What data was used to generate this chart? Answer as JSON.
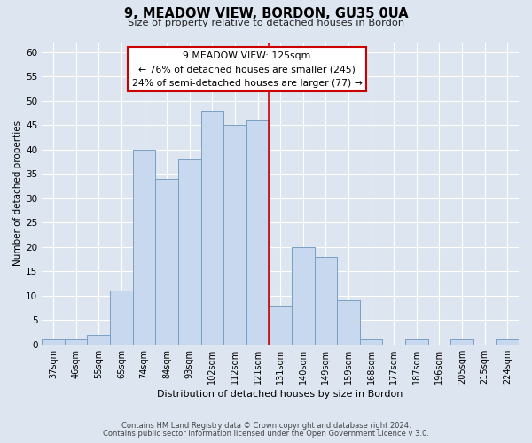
{
  "title": "9, MEADOW VIEW, BORDON, GU35 0UA",
  "subtitle": "Size of property relative to detached houses in Bordon",
  "xlabel": "Distribution of detached houses by size in Bordon",
  "ylabel": "Number of detached properties",
  "footer_line1": "Contains HM Land Registry data © Crown copyright and database right 2024.",
  "footer_line2": "Contains public sector information licensed under the Open Government Licence v 3.0.",
  "bin_labels": [
    "37sqm",
    "46sqm",
    "55sqm",
    "65sqm",
    "74sqm",
    "84sqm",
    "93sqm",
    "102sqm",
    "112sqm",
    "121sqm",
    "131sqm",
    "140sqm",
    "149sqm",
    "159sqm",
    "168sqm",
    "177sqm",
    "187sqm",
    "196sqm",
    "205sqm",
    "215sqm",
    "224sqm"
  ],
  "bin_values": [
    1,
    1,
    2,
    11,
    40,
    34,
    38,
    48,
    45,
    46,
    8,
    20,
    18,
    9,
    1,
    0,
    1,
    0,
    1,
    0,
    1
  ],
  "bar_color": "#c8d8ee",
  "bar_edge_color": "#7a9fc0",
  "ylim": [
    0,
    62
  ],
  "yticks": [
    0,
    5,
    10,
    15,
    20,
    25,
    30,
    35,
    40,
    45,
    50,
    55,
    60
  ],
  "property_line_label": "9 MEADOW VIEW: 125sqm",
  "annotation_line1": "← 76% of detached houses are smaller (245)",
  "annotation_line2": "24% of semi-detached houses are larger (77) →",
  "background_color": "#dde6f0",
  "plot_bg_color": "#dde6f0",
  "grid_color": "#c0cfe0"
}
